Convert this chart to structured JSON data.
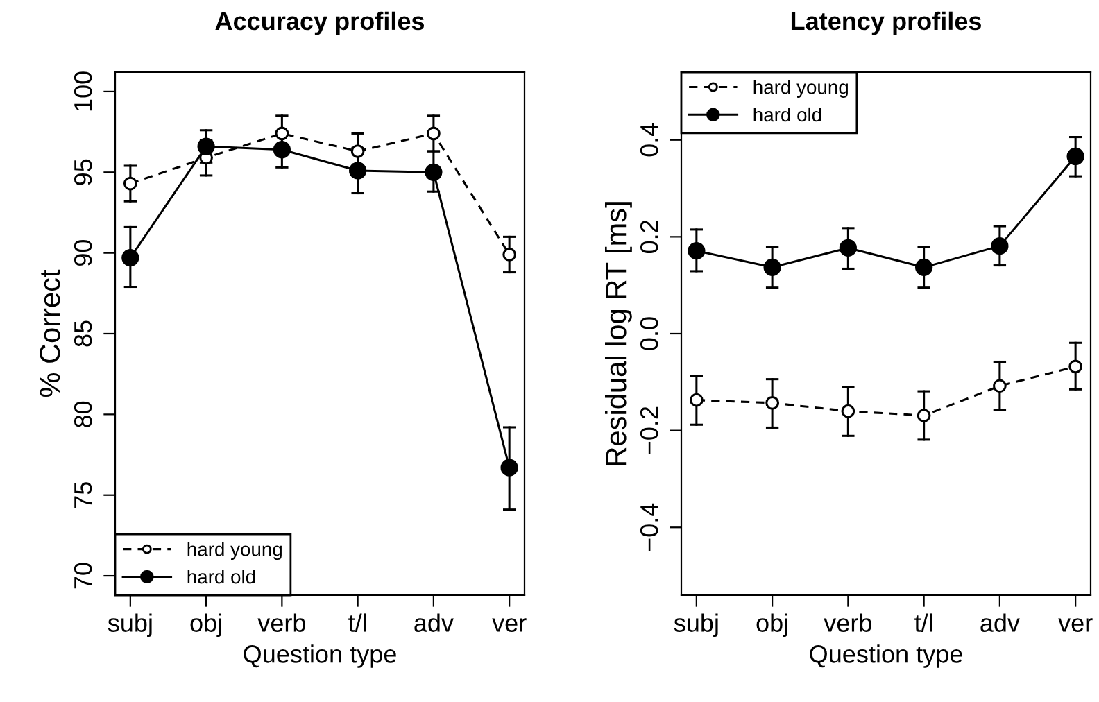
{
  "chart_data": [
    {
      "type": "line",
      "title": "Accuracy profiles",
      "xlabel": "Question type",
      "ylabel": "% Correct",
      "categories": [
        "subj",
        "obj",
        "verb",
        "t/l",
        "adv",
        "ver"
      ],
      "ylim": [
        68.8,
        101.2
      ],
      "yticks": [
        70,
        75,
        80,
        85,
        90,
        95,
        100
      ],
      "grid": false,
      "legend": "bottom left",
      "marker": "circle",
      "series": [
        {
          "name": "hard young",
          "color": "#000000",
          "line_style": "dashed",
          "values": [
            94.3,
            95.9,
            97.4,
            96.3,
            97.4,
            89.9
          ],
          "errors": [
            [
              93.2,
              95.4
            ],
            [
              94.8,
              97.0
            ],
            [
              97.4,
              98.5
            ],
            [
              96.3,
              97.4
            ],
            [
              96.3,
              98.5
            ],
            [
              88.8,
              91.0
            ]
          ]
        },
        {
          "name": "hard old",
          "color": "#000000",
          "line_style": "solid",
          "values": [
            89.7,
            96.6,
            96.4,
            95.1,
            95.0,
            76.7
          ],
          "errors": [
            [
              87.9,
              91.6
            ],
            [
              95.6,
              97.6
            ],
            [
              95.3,
              97.5
            ],
            [
              93.7,
              96.5
            ],
            [
              93.8,
              96.3
            ],
            [
              74.1,
              79.2
            ]
          ]
        }
      ]
    },
    {
      "type": "line",
      "title": "Latency profiles",
      "xlabel": "Question type",
      "ylabel": "Residual log RT [ms]",
      "categories": [
        "subj",
        "obj",
        "verb",
        "t/l",
        "adv",
        "ver"
      ],
      "ylim": [
        -0.54,
        0.54
      ],
      "yticks": [
        {
          "value": -0.4,
          "label": "−0.4"
        },
        {
          "value": -0.2,
          "label": "−0.2"
        },
        {
          "value": 0,
          "label": "0.0"
        },
        {
          "value": 0.2,
          "label": "0.2"
        },
        {
          "value": 0.4,
          "label": "0.4"
        }
      ],
      "grid": false,
      "legend": "top left",
      "marker": "circle",
      "series": [
        {
          "name": "hard young",
          "color": "#000000",
          "line_style": "dashed",
          "values": [
            -0.137,
            -0.143,
            -0.16,
            -0.169,
            -0.108,
            -0.068
          ],
          "errors": [
            [
              -0.188,
              -0.088
            ],
            [
              -0.194,
              -0.094
            ],
            [
              -0.211,
              -0.111
            ],
            [
              -0.219,
              -0.119
            ],
            [
              -0.158,
              -0.058
            ],
            [
              -0.115,
              -0.019
            ]
          ]
        },
        {
          "name": "hard old",
          "color": "#000000",
          "line_style": "solid",
          "values": [
            0.171,
            0.137,
            0.177,
            0.137,
            0.181,
            0.366
          ],
          "errors": [
            [
              0.129,
              0.215
            ],
            [
              0.095,
              0.179
            ],
            [
              0.134,
              0.218
            ],
            [
              0.095,
              0.179
            ],
            [
              0.141,
              0.222
            ],
            [
              0.325,
              0.406
            ]
          ]
        }
      ]
    }
  ]
}
